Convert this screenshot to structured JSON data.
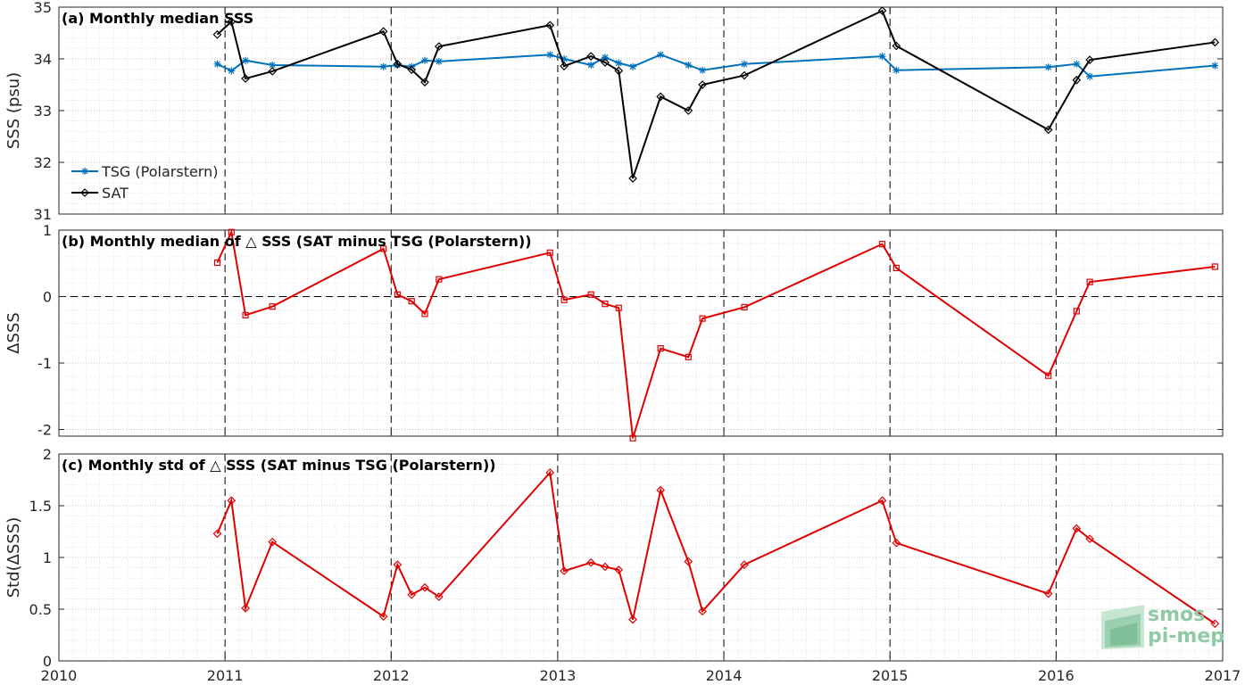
{
  "colors": {
    "tsg": "#0072bd",
    "sat": "#000000",
    "delta": "#e00000",
    "logo": "#8fcaa6"
  },
  "logo": {
    "line1": "smos",
    "line2": "pi-mep",
    "icon": "smos-pimep-logo-icon"
  },
  "x_axis": {
    "type": "time",
    "range": [
      "2010-01-01",
      "2017-01-01"
    ],
    "tick_labels": [
      "2010",
      "2011",
      "2012",
      "2013",
      "2014",
      "2015",
      "2016",
      "2017"
    ],
    "minor_grid": "monthly",
    "major_dashed_lines": [
      "2011-01-01",
      "2012-01-01",
      "2013-01-01",
      "2014-01-01",
      "2015-01-01",
      "2016-01-01"
    ]
  },
  "chart_data": [
    {
      "type": "line",
      "title": "(a) Monthly median SSS",
      "xlabel": "",
      "ylabel": "SSS (psu)",
      "ylim": [
        31,
        35
      ],
      "y_ticks": [
        "31",
        "32",
        "33",
        "34",
        "35"
      ],
      "grid": true,
      "legend_position": "bottom-left",
      "series": [
        {
          "name": "TSG (Polarstern)",
          "color": "#0072bd",
          "marker": "asterisk",
          "points": [
            [
              "2010-12-15",
              33.9
            ],
            [
              "2011-01-15",
              33.77
            ],
            [
              "2011-02-15",
              33.97
            ],
            [
              "2011-04-15",
              33.88
            ],
            [
              "2011-12-15",
              33.85
            ],
            [
              "2012-01-15",
              33.88
            ],
            [
              "2012-02-15",
              33.85
            ],
            [
              "2012-03-15",
              33.97
            ],
            [
              "2012-04-15",
              33.95
            ],
            [
              "2012-12-15",
              34.08
            ],
            [
              "2013-01-15",
              34.0
            ],
            [
              "2013-03-15",
              33.88
            ],
            [
              "2013-04-15",
              34.03
            ],
            [
              "2013-05-15",
              33.92
            ],
            [
              "2013-06-15",
              33.85
            ],
            [
              "2013-08-15",
              34.08
            ],
            [
              "2013-10-15",
              33.88
            ],
            [
              "2013-11-15",
              33.78
            ],
            [
              "2014-02-15",
              33.9
            ],
            [
              "2014-12-15",
              34.05
            ],
            [
              "2015-01-15",
              33.78
            ],
            [
              "2015-12-15",
              33.84
            ],
            [
              "2016-02-15",
              33.9
            ],
            [
              "2016-03-15",
              33.66
            ],
            [
              "2016-12-15",
              33.87
            ]
          ]
        },
        {
          "name": "SAT",
          "color": "#000000",
          "marker": "diamond",
          "points": [
            [
              "2010-12-15",
              34.47
            ],
            [
              "2011-01-15",
              34.72
            ],
            [
              "2011-02-15",
              33.62
            ],
            [
              "2011-04-15",
              33.76
            ],
            [
              "2011-12-15",
              34.53
            ],
            [
              "2012-01-15",
              33.9
            ],
            [
              "2012-02-15",
              33.79
            ],
            [
              "2012-03-15",
              33.55
            ],
            [
              "2012-04-15",
              34.24
            ],
            [
              "2012-12-15",
              34.65
            ],
            [
              "2013-01-15",
              33.86
            ],
            [
              "2013-03-15",
              34.05
            ],
            [
              "2013-04-15",
              33.93
            ],
            [
              "2013-05-15",
              33.77
            ],
            [
              "2013-06-15",
              31.69
            ],
            [
              "2013-08-15",
              33.27
            ],
            [
              "2013-10-15",
              33.0
            ],
            [
              "2013-11-15",
              33.5
            ],
            [
              "2014-02-15",
              33.68
            ],
            [
              "2014-12-15",
              34.93
            ],
            [
              "2015-01-15",
              34.25
            ],
            [
              "2015-12-15",
              32.63
            ],
            [
              "2016-02-15",
              33.59
            ],
            [
              "2016-03-15",
              33.98
            ],
            [
              "2016-12-15",
              34.32
            ]
          ]
        }
      ]
    },
    {
      "type": "line",
      "title": "(b) Monthly median of △ SSS (SAT minus TSG (Polarstern))",
      "xlabel": "",
      "ylabel": "ΔSSS",
      "ylim": [
        -2.1,
        1.0
      ],
      "y_ticks": [
        "-2",
        "-1",
        "0",
        "1"
      ],
      "zero_line": "dashed",
      "grid": true,
      "series": [
        {
          "color": "#e00000",
          "marker": "square",
          "points": [
            [
              "2010-12-15",
              0.51
            ],
            [
              "2011-01-15",
              0.97
            ],
            [
              "2011-02-15",
              -0.28
            ],
            [
              "2011-04-15",
              -0.15
            ],
            [
              "2011-12-15",
              0.72
            ],
            [
              "2012-01-15",
              0.03
            ],
            [
              "2012-02-15",
              -0.07
            ],
            [
              "2012-03-15",
              -0.26
            ],
            [
              "2012-04-15",
              0.26
            ],
            [
              "2012-12-15",
              0.66
            ],
            [
              "2013-01-15",
              -0.05
            ],
            [
              "2013-03-15",
              0.03
            ],
            [
              "2013-04-15",
              -0.11
            ],
            [
              "2013-05-15",
              -0.17
            ],
            [
              "2013-06-15",
              -2.13
            ],
            [
              "2013-08-15",
              -0.78
            ],
            [
              "2013-10-15",
              -0.91
            ],
            [
              "2013-11-15",
              -0.33
            ],
            [
              "2014-02-15",
              -0.16
            ],
            [
              "2014-12-15",
              0.79
            ],
            [
              "2015-01-15",
              0.43
            ],
            [
              "2015-12-15",
              -1.19
            ],
            [
              "2016-02-15",
              -0.22
            ],
            [
              "2016-03-15",
              0.22
            ],
            [
              "2016-12-15",
              0.45
            ]
          ]
        }
      ]
    },
    {
      "type": "line",
      "title": "(c) Monthly std of △ SSS (SAT minus TSG (Polarstern))",
      "xlabel": "",
      "ylabel": "Std(ΔSSS)",
      "ylim": [
        0,
        2
      ],
      "y_ticks": [
        "0",
        "0.5",
        "1",
        "1.5",
        "2"
      ],
      "grid": true,
      "series": [
        {
          "color": "#e00000",
          "marker": "diamond",
          "points": [
            [
              "2010-12-15",
              1.23
            ],
            [
              "2011-01-15",
              1.55
            ],
            [
              "2011-02-15",
              0.51
            ],
            [
              "2011-04-15",
              1.15
            ],
            [
              "2011-12-15",
              0.43
            ],
            [
              "2012-01-15",
              0.93
            ],
            [
              "2012-02-15",
              0.64
            ],
            [
              "2012-03-15",
              0.71
            ],
            [
              "2012-04-15",
              0.62
            ],
            [
              "2012-12-15",
              1.82
            ],
            [
              "2013-01-15",
              0.87
            ],
            [
              "2013-03-15",
              0.95
            ],
            [
              "2013-04-15",
              0.91
            ],
            [
              "2013-05-15",
              0.88
            ],
            [
              "2013-06-15",
              0.4
            ],
            [
              "2013-08-15",
              1.65
            ],
            [
              "2013-10-15",
              0.96
            ],
            [
              "2013-11-15",
              0.48
            ],
            [
              "2014-02-15",
              0.93
            ],
            [
              "2014-12-15",
              1.55
            ],
            [
              "2015-01-15",
              1.14
            ],
            [
              "2015-12-15",
              0.65
            ],
            [
              "2016-02-15",
              1.28
            ],
            [
              "2016-03-15",
              1.18
            ],
            [
              "2016-12-15",
              0.36
            ]
          ]
        }
      ]
    }
  ]
}
